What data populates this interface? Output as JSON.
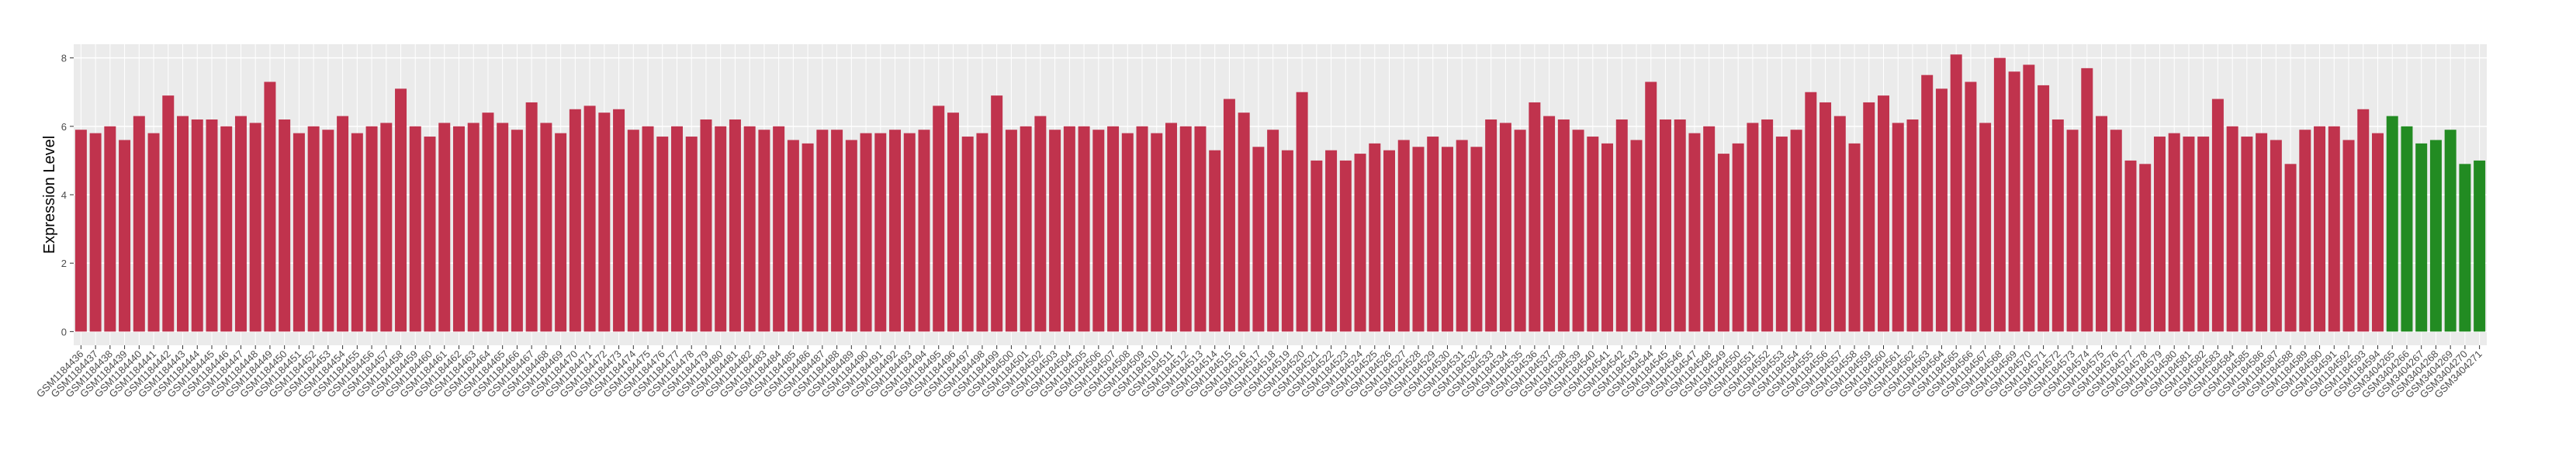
{
  "chart_data": {
    "type": "bar",
    "ylabel": "Expression Level",
    "categories": [
      "GSM1184436",
      "GSM1184437",
      "GSM1184438",
      "GSM1184439",
      "GSM1184440",
      "GSM1184441",
      "GSM1184442",
      "GSM1184443",
      "GSM1184444",
      "GSM1184445",
      "GSM1184446",
      "GSM1184447",
      "GSM1184448",
      "GSM1184449",
      "GSM1184450",
      "GSM1184451",
      "GSM1184452",
      "GSM1184453",
      "GSM1184454",
      "GSM1184455",
      "GSM1184456",
      "GSM1184457",
      "GSM1184458",
      "GSM1184459",
      "GSM1184460",
      "GSM1184461",
      "GSM1184462",
      "GSM1184463",
      "GSM1184464",
      "GSM1184465",
      "GSM1184466",
      "GSM1184467",
      "GSM1184468",
      "GSM1184469",
      "GSM1184470",
      "GSM1184471",
      "GSM1184472",
      "GSM1184473",
      "GSM1184474",
      "GSM1184475",
      "GSM1184476",
      "GSM1184477",
      "GSM1184478",
      "GSM1184479",
      "GSM1184480",
      "GSM1184481",
      "GSM1184482",
      "GSM1184483",
      "GSM1184484",
      "GSM1184485",
      "GSM1184486",
      "GSM1184487",
      "GSM1184488",
      "GSM1184489",
      "GSM1184490",
      "GSM1184491",
      "GSM1184492",
      "GSM1184493",
      "GSM1184494",
      "GSM1184495",
      "GSM1184496",
      "GSM1184497",
      "GSM1184498",
      "GSM1184499",
      "GSM1184500",
      "GSM1184501",
      "GSM1184502",
      "GSM1184503",
      "GSM1184504",
      "GSM1184505",
      "GSM1184506",
      "GSM1184507",
      "GSM1184508",
      "GSM1184509",
      "GSM1184510",
      "GSM1184511",
      "GSM1184512",
      "GSM1184513",
      "GSM1184514",
      "GSM1184515",
      "GSM1184516",
      "GSM1184517",
      "GSM1184518",
      "GSM1184519",
      "GSM1184520",
      "GSM1184521",
      "GSM1184522",
      "GSM1184523",
      "GSM1184524",
      "GSM1184525",
      "GSM1184526",
      "GSM1184527",
      "GSM1184528",
      "GSM1184529",
      "GSM1184530",
      "GSM1184531",
      "GSM1184532",
      "GSM1184533",
      "GSM1184534",
      "GSM1184535",
      "GSM1184536",
      "GSM1184537",
      "GSM1184538",
      "GSM1184539",
      "GSM1184540",
      "GSM1184541",
      "GSM1184542",
      "GSM1184543",
      "GSM1184544",
      "GSM1184545",
      "GSM1184546",
      "GSM1184547",
      "GSM1184548",
      "GSM1184549",
      "GSM1184550",
      "GSM1184551",
      "GSM1184552",
      "GSM1184553",
      "GSM1184554",
      "GSM1184555",
      "GSM1184556",
      "GSM1184557",
      "GSM1184558",
      "GSM1184559",
      "GSM1184560",
      "GSM1184561",
      "GSM1184562",
      "GSM1184563",
      "GSM1184564",
      "GSM1184565",
      "GSM1184566",
      "GSM1184567",
      "GSM1184568",
      "GSM1184569",
      "GSM1184570",
      "GSM1184571",
      "GSM1184572",
      "GSM1184573",
      "GSM1184574",
      "GSM1184575",
      "GSM1184576",
      "GSM1184577",
      "GSM1184578",
      "GSM1184579",
      "GSM1184580",
      "GSM1184581",
      "GSM1184582",
      "GSM1184583",
      "GSM1184584",
      "GSM1184585",
      "GSM1184586",
      "GSM1184587",
      "GSM1184588",
      "GSM1184589",
      "GSM1184590",
      "GSM1184591",
      "GSM1184592",
      "GSM1184593",
      "GSM1184594",
      "GSM3404265",
      "GSM3404266",
      "GSM3404267",
      "GSM3404268",
      "GSM3404269",
      "GSM3404270",
      "GSM3404271"
    ],
    "values": [
      5.9,
      5.8,
      6.0,
      5.6,
      6.3,
      5.8,
      6.9,
      6.3,
      6.2,
      6.2,
      6.0,
      6.3,
      6.1,
      7.3,
      6.2,
      5.8,
      6.0,
      5.9,
      6.3,
      5.8,
      6.0,
      6.1,
      7.1,
      6.0,
      5.7,
      6.1,
      6.0,
      6.1,
      6.4,
      6.1,
      5.9,
      6.7,
      6.1,
      5.8,
      6.5,
      6.6,
      6.4,
      6.5,
      5.9,
      6.0,
      5.7,
      6.0,
      5.7,
      6.2,
      6.0,
      6.2,
      6.0,
      5.9,
      6.0,
      5.6,
      5.5,
      5.9,
      5.9,
      5.6,
      5.8,
      5.8,
      5.9,
      5.8,
      5.9,
      6.6,
      6.4,
      5.7,
      5.8,
      6.9,
      5.9,
      6.0,
      6.3,
      5.9,
      6.0,
      6.0,
      5.9,
      6.0,
      5.8,
      6.0,
      5.8,
      6.1,
      6.0,
      6.0,
      5.3,
      6.8,
      6.4,
      5.4,
      5.9,
      5.3,
      7.0,
      5.0,
      5.3,
      5.0,
      5.2,
      5.5,
      5.3,
      5.6,
      5.4,
      5.7,
      5.4,
      5.6,
      5.4,
      6.2,
      6.1,
      5.9,
      6.7,
      6.3,
      6.2,
      5.9,
      5.7,
      5.5,
      6.2,
      5.6,
      7.3,
      6.2,
      6.2,
      5.8,
      6.0,
      5.2,
      5.5,
      6.1,
      6.2,
      5.7,
      5.9,
      7.0,
      6.7,
      6.3,
      5.5,
      6.7,
      6.9,
      6.1,
      6.2,
      7.5,
      7.1,
      8.1,
      7.3,
      6.1,
      8.0,
      7.6,
      7.8,
      7.2,
      6.2,
      5.9,
      7.7,
      6.3,
      5.9,
      5.0,
      4.9,
      5.7,
      5.8,
      5.7,
      5.7,
      6.8,
      6.0,
      5.7,
      5.8,
      5.6,
      4.9,
      5.9,
      6.0,
      6.0,
      5.6,
      6.5,
      5.8,
      6.3,
      6.0,
      5.5,
      5.6,
      5.9,
      4.9,
      5.0
    ],
    "colors": [
      "#c0334d",
      "#c0334d",
      "#c0334d",
      "#c0334d",
      "#c0334d",
      "#c0334d",
      "#c0334d",
      "#c0334d",
      "#c0334d",
      "#c0334d",
      "#c0334d",
      "#c0334d",
      "#c0334d",
      "#c0334d",
      "#c0334d",
      "#c0334d",
      "#c0334d",
      "#c0334d",
      "#c0334d",
      "#c0334d",
      "#c0334d",
      "#c0334d",
      "#c0334d",
      "#c0334d",
      "#c0334d",
      "#c0334d",
      "#c0334d",
      "#c0334d",
      "#c0334d",
      "#c0334d",
      "#c0334d",
      "#c0334d",
      "#c0334d",
      "#c0334d",
      "#c0334d",
      "#c0334d",
      "#c0334d",
      "#c0334d",
      "#c0334d",
      "#c0334d",
      "#c0334d",
      "#c0334d",
      "#c0334d",
      "#c0334d",
      "#c0334d",
      "#c0334d",
      "#c0334d",
      "#c0334d",
      "#c0334d",
      "#c0334d",
      "#c0334d",
      "#c0334d",
      "#c0334d",
      "#c0334d",
      "#c0334d",
      "#c0334d",
      "#c0334d",
      "#c0334d",
      "#c0334d",
      "#c0334d",
      "#c0334d",
      "#c0334d",
      "#c0334d",
      "#c0334d",
      "#c0334d",
      "#c0334d",
      "#c0334d",
      "#c0334d",
      "#c0334d",
      "#c0334d",
      "#c0334d",
      "#c0334d",
      "#c0334d",
      "#c0334d",
      "#c0334d",
      "#c0334d",
      "#c0334d",
      "#c0334d",
      "#c0334d",
      "#c0334d",
      "#c0334d",
      "#c0334d",
      "#c0334d",
      "#c0334d",
      "#c0334d",
      "#c0334d",
      "#c0334d",
      "#c0334d",
      "#c0334d",
      "#c0334d",
      "#c0334d",
      "#c0334d",
      "#c0334d",
      "#c0334d",
      "#c0334d",
      "#c0334d",
      "#c0334d",
      "#c0334d",
      "#c0334d",
      "#c0334d",
      "#c0334d",
      "#c0334d",
      "#c0334d",
      "#c0334d",
      "#c0334d",
      "#c0334d",
      "#c0334d",
      "#c0334d",
      "#c0334d",
      "#c0334d",
      "#c0334d",
      "#c0334d",
      "#c0334d",
      "#c0334d",
      "#c0334d",
      "#c0334d",
      "#c0334d",
      "#c0334d",
      "#c0334d",
      "#c0334d",
      "#c0334d",
      "#c0334d",
      "#c0334d",
      "#c0334d",
      "#c0334d",
      "#c0334d",
      "#c0334d",
      "#c0334d",
      "#c0334d",
      "#c0334d",
      "#c0334d",
      "#c0334d",
      "#c0334d",
      "#c0334d",
      "#c0334d",
      "#c0334d",
      "#c0334d",
      "#c0334d",
      "#c0334d",
      "#c0334d",
      "#c0334d",
      "#c0334d",
      "#c0334d",
      "#c0334d",
      "#c0334d",
      "#c0334d",
      "#c0334d",
      "#c0334d",
      "#c0334d",
      "#c0334d",
      "#c0334d",
      "#c0334d",
      "#c0334d",
      "#c0334d",
      "#c0334d",
      "#c0334d",
      "#c0334d",
      "#c0334d",
      "#c0334d",
      "#228b22",
      "#228b22",
      "#228b22",
      "#228b22",
      "#228b22",
      "#228b22",
      "#228b22"
    ],
    "ylim": [
      -0.4,
      8.4
    ],
    "yticks": [
      0,
      2,
      4,
      6,
      8
    ],
    "grid": true
  }
}
